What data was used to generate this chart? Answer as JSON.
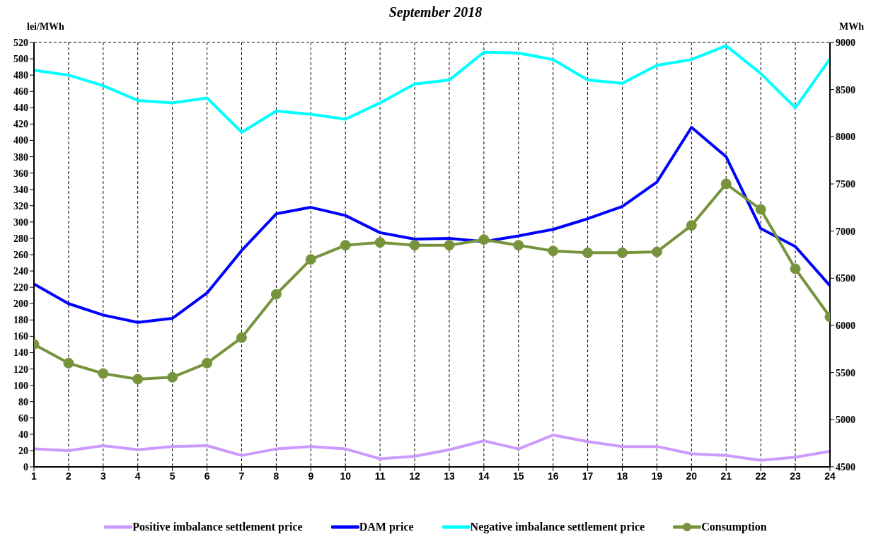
{
  "chart_data": {
    "type": "line",
    "title": "September 2018",
    "ylabel": "lei/MWh",
    "y2label": "MWh",
    "x": [
      1,
      2,
      3,
      4,
      5,
      6,
      7,
      8,
      9,
      10,
      11,
      12,
      13,
      14,
      15,
      16,
      17,
      18,
      19,
      20,
      21,
      22,
      23,
      24
    ],
    "xlim": [
      1,
      24
    ],
    "xticks": [
      1,
      2,
      3,
      4,
      5,
      6,
      7,
      8,
      9,
      10,
      11,
      12,
      13,
      14,
      15,
      16,
      17,
      18,
      19,
      20,
      21,
      22,
      23,
      24
    ],
    "ylim": [
      0,
      520
    ],
    "yticks": [
      0,
      20,
      40,
      60,
      80,
      100,
      120,
      140,
      160,
      180,
      200,
      220,
      240,
      260,
      280,
      300,
      320,
      340,
      360,
      380,
      400,
      420,
      440,
      460,
      480,
      500,
      520
    ],
    "y2lim": [
      4500,
      9000
    ],
    "y2ticks": [
      4500,
      5000,
      5500,
      6000,
      6500,
      7000,
      7500,
      8000,
      8500,
      9000
    ],
    "grid": true,
    "legend": "bottom",
    "line_style": "solid",
    "series": [
      {
        "name": "Positive imbalance settlement price",
        "color": "#cc99ff",
        "marker": "none",
        "values": [
          22,
          20,
          26,
          21,
          25,
          26,
          14,
          22,
          25,
          22,
          10,
          13,
          21,
          32,
          22,
          39,
          31,
          25,
          25,
          16,
          14,
          8,
          12,
          19
        ]
      },
      {
        "name": "DAM price",
        "color": "#0000ff",
        "marker": "none",
        "values": [
          224,
          200,
          186,
          177,
          182,
          213,
          265,
          310,
          318,
          308,
          287,
          279,
          280,
          276,
          283,
          291,
          304,
          319,
          349,
          416,
          380,
          292,
          270,
          222
        ]
      },
      {
        "name": "Negative imbalance settlement price",
        "color": "#00ffff",
        "marker": "none",
        "values": [
          486,
          480,
          467,
          449,
          446,
          452,
          410,
          436,
          432,
          426,
          446,
          469,
          474,
          508,
          507,
          499,
          474,
          470,
          492,
          499,
          516,
          482,
          440,
          500
        ]
      },
      {
        "name": "Consumption",
        "color": "#77933c",
        "marker": "circle",
        "axis": "y2",
        "values": [
          5800,
          5600,
          5490,
          5430,
          5450,
          5600,
          5870,
          6330,
          6700,
          6850,
          6880,
          6850,
          6850,
          6910,
          6850,
          6790,
          6770,
          6770,
          6780,
          7060,
          7500,
          7230,
          6600,
          6090
        ]
      }
    ]
  }
}
